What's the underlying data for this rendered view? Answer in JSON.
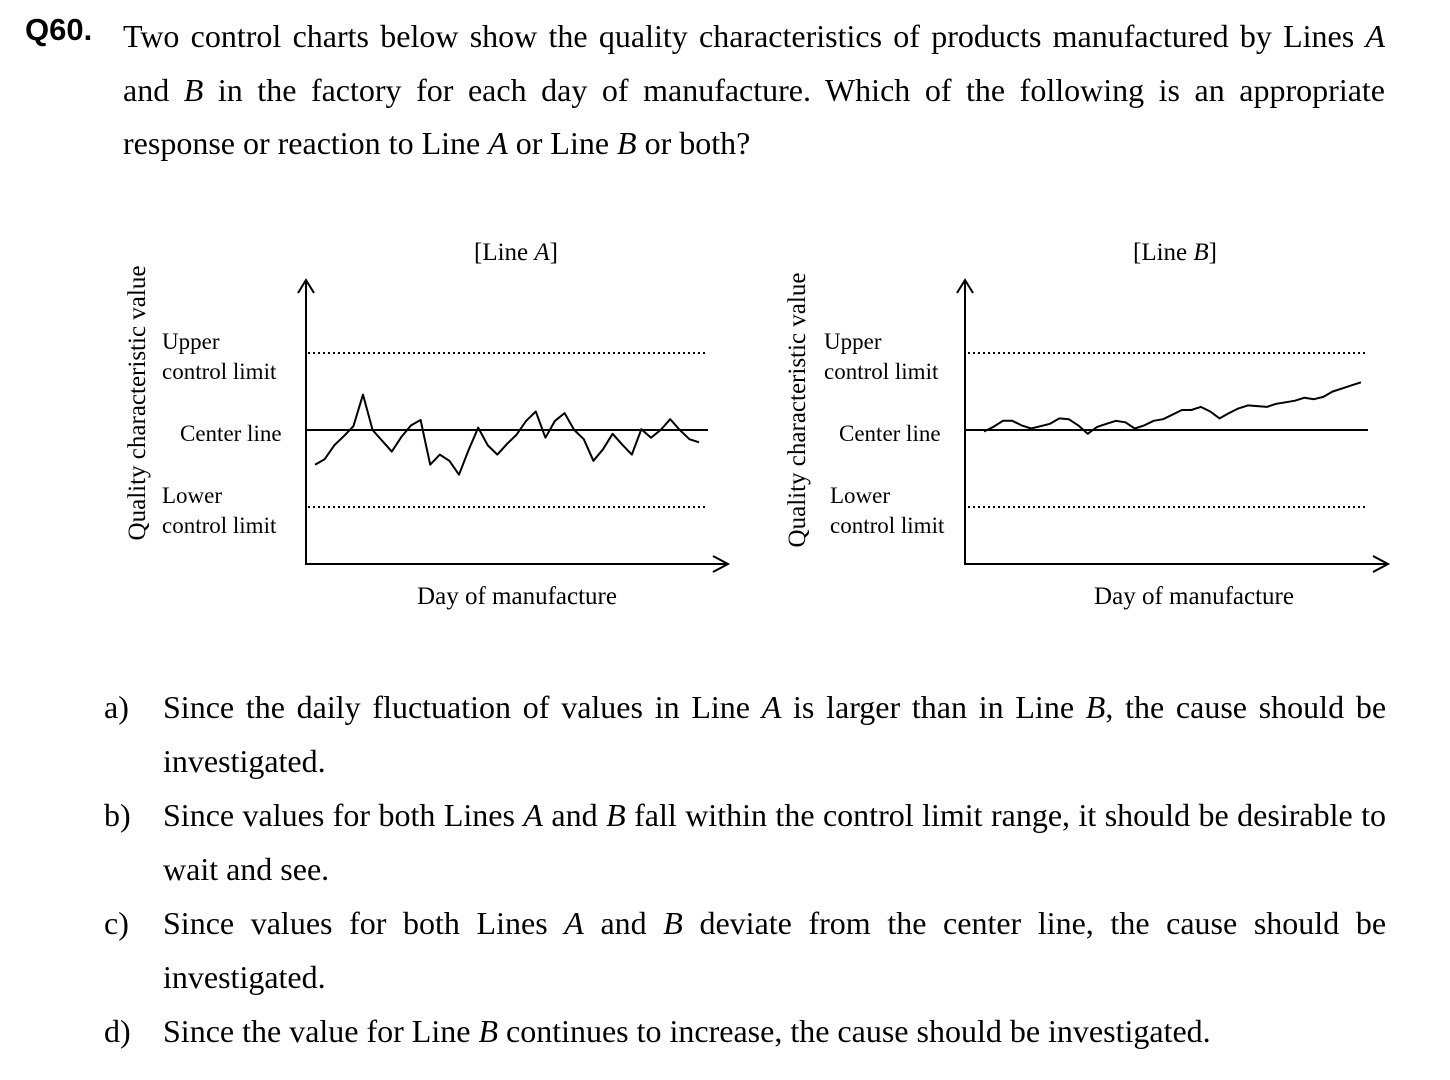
{
  "question": {
    "number": "Q60.",
    "text": "Two control charts below show the quality characteristics of products manufactured by Lines A and B in the factory for each day of manufacture.   Which of the following is an appropriate response or reaction to Line A or Line B or both?"
  },
  "chart_data": [
    {
      "type": "line",
      "title": "[Line A]",
      "xlabel": "Day of manufacture",
      "ylabel": "Quality characteristic value",
      "ylim": [
        -1.6,
        1.6
      ],
      "control_lines": [
        {
          "label": "Upper control limit",
          "value": 1.0,
          "style": "dotted"
        },
        {
          "label": "Center line",
          "value": 0.0,
          "style": "solid"
        },
        {
          "label": "Lower control limit",
          "value": -1.0,
          "style": "dotted"
        }
      ],
      "series": [
        {
          "x": [
            0,
            1,
            2,
            3,
            4,
            5,
            6,
            7,
            8,
            9,
            10,
            11,
            12,
            13,
            14,
            15,
            16,
            17,
            18,
            19,
            20,
            21,
            22,
            23,
            24,
            25,
            26,
            27,
            28,
            29,
            30,
            31,
            32,
            33,
            34,
            35,
            36,
            37,
            38,
            39,
            40
          ],
          "values": [
            -0.45,
            -0.38,
            -0.2,
            -0.08,
            0.05,
            0.46,
            0.0,
            -0.14,
            -0.28,
            -0.09,
            0.06,
            0.13,
            -0.45,
            -0.32,
            -0.4,
            -0.58,
            -0.26,
            0.03,
            -0.2,
            -0.32,
            -0.18,
            -0.06,
            0.12,
            0.24,
            -0.1,
            0.12,
            0.22,
            0.0,
            -0.12,
            -0.4,
            -0.25,
            -0.05,
            -0.19,
            -0.32,
            0.01,
            -0.1,
            0.0,
            0.14,
            0.0,
            -0.12,
            -0.16
          ]
        }
      ]
    },
    {
      "type": "line",
      "title": "[Line B]",
      "xlabel": "Day of manufacture",
      "ylabel": "Quality characteristic value",
      "ylim": [
        -1.6,
        1.6
      ],
      "control_lines": [
        {
          "label": "Upper control limit",
          "value": 1.0,
          "style": "dotted"
        },
        {
          "label": "Center line",
          "value": 0.0,
          "style": "solid"
        },
        {
          "label": "Lower control limit",
          "value": -1.0,
          "style": "dotted"
        }
      ],
      "series": [
        {
          "x": [
            0,
            1,
            2,
            3,
            4,
            5,
            6,
            7,
            8,
            9,
            10,
            11,
            12,
            13,
            14,
            15,
            16,
            17,
            18,
            19,
            20,
            21,
            22,
            23,
            24,
            25,
            26,
            27,
            28,
            29,
            30,
            31,
            32,
            33,
            34,
            35,
            36,
            37,
            38,
            39,
            40
          ],
          "values": [
            -0.02,
            0.04,
            0.12,
            0.12,
            0.06,
            0.02,
            0.05,
            0.08,
            0.15,
            0.14,
            0.06,
            -0.05,
            0.04,
            0.08,
            0.12,
            0.1,
            0.02,
            0.06,
            0.12,
            0.14,
            0.2,
            0.26,
            0.26,
            0.3,
            0.24,
            0.15,
            0.22,
            0.28,
            0.32,
            0.31,
            0.3,
            0.34,
            0.36,
            0.38,
            0.42,
            0.4,
            0.43,
            0.5,
            0.54,
            0.58,
            0.62
          ]
        }
      ]
    }
  ],
  "options": [
    {
      "label": "a)",
      "text": "Since the daily fluctuation of values in Line A is larger than in Line B, the cause should be investigated."
    },
    {
      "label": "b)",
      "text": "Since values for both Lines A and B fall within the control limit range, it should be desirable to wait and see."
    },
    {
      "label": "c)",
      "text": "Since values for both Lines A and B deviate from the center line, the cause should be investigated."
    },
    {
      "label": "d)",
      "text": "Since the value for Line B continues to increase, the cause should be investigated."
    }
  ]
}
